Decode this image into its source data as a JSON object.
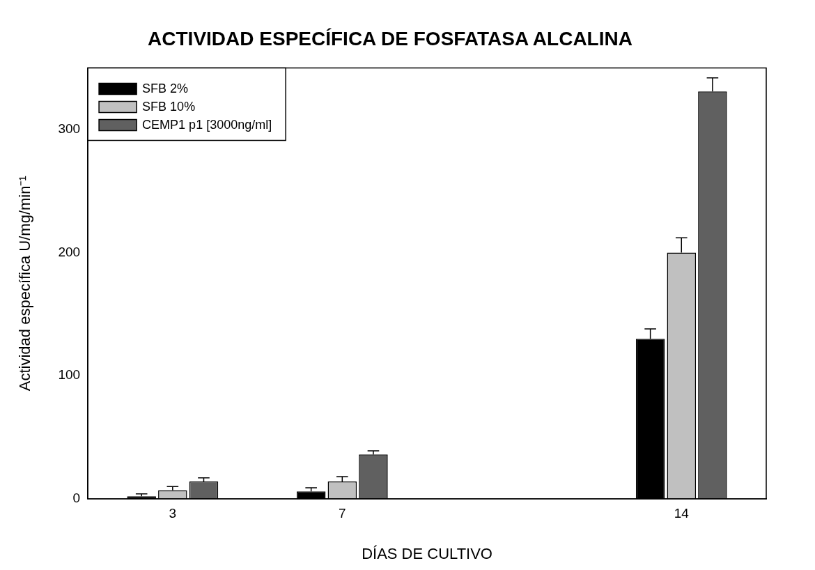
{
  "chart_data": {
    "type": "bar",
    "title": "ACTIVIDAD ESPECÍFICA DE FOSFATASA ALCALINA",
    "xlabel": "DÍAS DE CULTIVO",
    "ylabel": "Actividad específica U/mg/min⁻¹",
    "categories": [
      "3",
      "7",
      null,
      "14"
    ],
    "series": [
      {
        "name": "SFB 2%",
        "color": "#000000",
        "values": [
          2,
          6,
          null,
          130
        ],
        "errors": [
          [
            2,
            4
          ],
          [
            6,
            9
          ],
          null,
          [
            130,
            138
          ]
        ]
      },
      {
        "name": "SFB 10%",
        "color": "#c0c0c0",
        "values": [
          7,
          14,
          null,
          200
        ],
        "errors": [
          [
            7,
            10
          ],
          [
            14,
            18
          ],
          null,
          [
            200,
            212
          ]
        ]
      },
      {
        "name": "CEMP1 p1 [3000ng/ml]",
        "color": "#606060",
        "values": [
          14,
          36,
          null,
          331
        ],
        "errors": [
          [
            14,
            17
          ],
          [
            36,
            39
          ],
          null,
          [
            331,
            342
          ]
        ]
      }
    ],
    "ylim": [
      0,
      350
    ],
    "yticks": [
      0,
      100,
      200,
      300
    ],
    "grid": false,
    "legend": "top left"
  }
}
